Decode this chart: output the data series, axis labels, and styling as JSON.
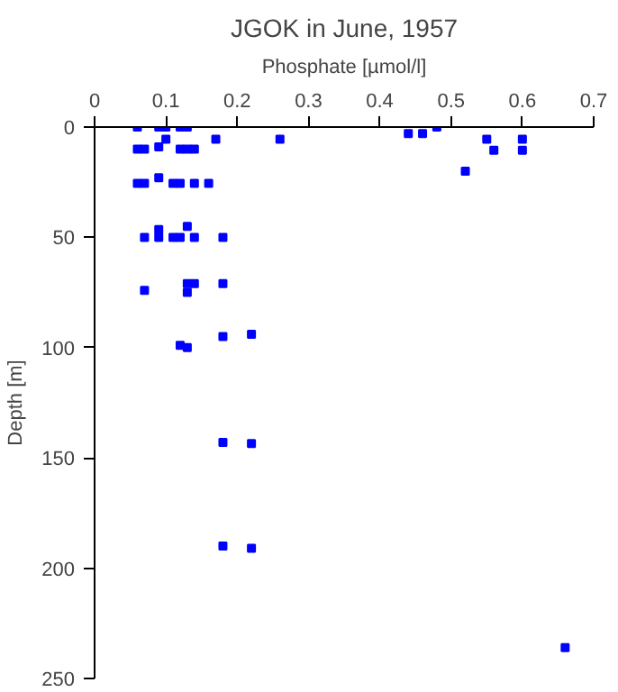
{
  "chart_data": {
    "type": "scatter",
    "title": "JGOK in June, 1957",
    "xlabel": "Phosphate [µmol/l]",
    "ylabel": "Depth [m]",
    "x": [
      0.06,
      0.09,
      0.1,
      0.12,
      0.13,
      0.1,
      0.17,
      0.26,
      0.06,
      0.07,
      0.09,
      0.12,
      0.13,
      0.14,
      0.06,
      0.07,
      0.09,
      0.11,
      0.12,
      0.14,
      0.16,
      0.13,
      0.09,
      0.07,
      0.09,
      0.11,
      0.12,
      0.14,
      0.18,
      0.13,
      0.14,
      0.18,
      0.07,
      0.13,
      0.12,
      0.13,
      0.18,
      0.22,
      0.18,
      0.22,
      0.18,
      0.22,
      0.44,
      0.46,
      0.48,
      0.55,
      0.6,
      0.56,
      0.6,
      0.52,
      0.66
    ],
    "values": [
      0,
      0,
      0,
      0,
      0,
      5.5,
      5.5,
      5.5,
      10,
      10,
      9,
      10,
      10,
      10,
      25.5,
      25.5,
      23,
      25.5,
      25.5,
      25.5,
      25.5,
      45,
      46.5,
      50,
      50,
      50,
      50,
      50,
      50,
      71,
      71,
      71,
      74,
      75,
      99,
      100,
      95,
      94,
      143,
      143.5,
      190,
      191,
      3,
      3,
      0,
      5.5,
      5.5,
      10.5,
      10.5,
      20,
      236
    ],
    "color": "#0000ff",
    "marker": "square",
    "xlim": [
      0,
      0.7
    ],
    "ylim": [
      250,
      0
    ],
    "xticks": [
      0,
      0.1,
      0.2,
      0.3,
      0.4,
      0.5,
      0.6,
      0.7
    ],
    "yticks": [
      0,
      50,
      100,
      150,
      200,
      250
    ],
    "grid": false
  }
}
